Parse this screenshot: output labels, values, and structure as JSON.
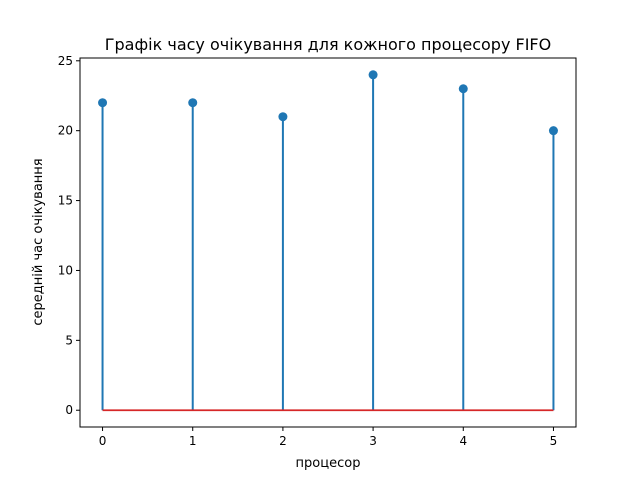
{
  "chart_data": {
    "type": "stem",
    "title": "Графік часу очікування для кожного процесору FIFO",
    "xlabel": "процесор",
    "ylabel": "середній час очікування",
    "x": [
      0,
      1,
      2,
      3,
      4,
      5
    ],
    "values": [
      22,
      22,
      21,
      24,
      23,
      20
    ],
    "xlim": [
      -0.25,
      5.25
    ],
    "ylim": [
      -1.2,
      25.2
    ],
    "xticks": [
      "0",
      "1",
      "2",
      "3",
      "4",
      "5"
    ],
    "yticks": [
      "0",
      "5",
      "10",
      "15",
      "20",
      "25"
    ],
    "grid": false,
    "colors": {
      "stem": "#1f77b4",
      "marker": "#1f77b4",
      "baseline": "#d62728"
    }
  }
}
